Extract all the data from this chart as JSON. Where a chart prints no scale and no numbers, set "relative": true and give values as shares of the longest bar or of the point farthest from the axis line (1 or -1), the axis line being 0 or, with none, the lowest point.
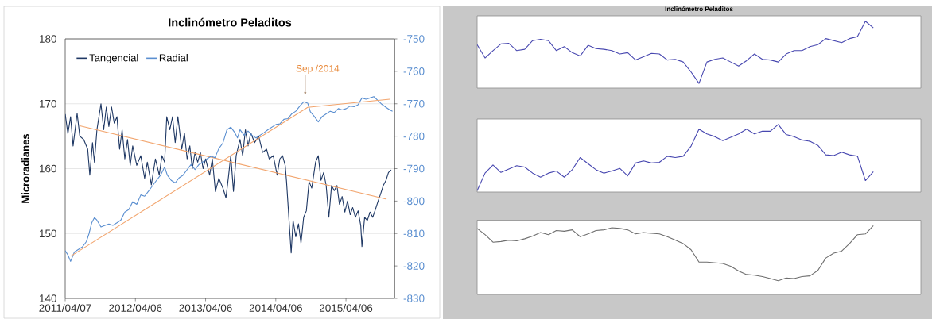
{
  "chart_data": [
    {
      "type": "line",
      "title": "Inclinómetro Peladitos",
      "ylabel": "Microradianes",
      "xlim": [
        "2011-04-07",
        "2015-12-14"
      ],
      "xticks": [
        {
          "value": "2011-04-07",
          "label": "2011/04/07"
        },
        {
          "value": "2012-04-06",
          "label": "2012/04/06"
        },
        {
          "value": "2013-04-06",
          "label": "2013/04/06"
        },
        {
          "value": "2014-04-06",
          "label": "2014/04/06"
        },
        {
          "value": "2015-04-06",
          "label": "2015/04/06"
        }
      ],
      "ylim": [
        140,
        180
      ],
      "yticks": [
        140,
        150,
        160,
        170,
        180
      ],
      "y2lim": [
        -830,
        -750
      ],
      "y2ticks": [
        -830,
        -820,
        -810,
        -800,
        -790,
        -780,
        -770,
        -760,
        -750
      ],
      "grid": "y",
      "legend": "top left",
      "series": [
        {
          "name": "Tangencial",
          "color": "#1f3864",
          "x": [
            "2011-04-07",
            "2011-04-21",
            "2011-05-05",
            "2011-05-18",
            "2011-06-08",
            "2011-06-22",
            "2011-07-12",
            "2011-08-02",
            "2011-08-13",
            "2011-08-27",
            "2011-09-06",
            "2011-09-19",
            "2011-10-10",
            "2011-10-24",
            "2011-11-07",
            "2011-11-20",
            "2011-12-04",
            "2011-12-18",
            "2012-01-01",
            "2012-01-15",
            "2012-01-28",
            "2012-02-11",
            "2012-02-25",
            "2012-03-10",
            "2012-03-23",
            "2012-04-13",
            "2012-05-04",
            "2012-05-24",
            "2012-06-07",
            "2012-06-28",
            "2012-07-19",
            "2012-08-08",
            "2012-08-22",
            "2012-09-05",
            "2012-09-16",
            "2012-10-02",
            "2012-10-16",
            "2012-10-30",
            "2012-11-13",
            "2012-12-03",
            "2012-12-17",
            "2012-12-31",
            "2013-01-14",
            "2013-01-27",
            "2013-02-10",
            "2013-02-24",
            "2013-03-10",
            "2013-03-24",
            "2013-04-06",
            "2013-04-27",
            "2013-05-11",
            "2013-05-27",
            "2013-06-14",
            "2013-07-05",
            "2013-07-21",
            "2013-08-04",
            "2013-08-15",
            "2013-08-29",
            "2013-09-12",
            "2013-10-02",
            "2013-10-16",
            "2013-10-30",
            "2013-11-13",
            "2013-11-27",
            "2013-12-17",
            "2014-01-07",
            "2014-01-28",
            "2014-02-17",
            "2014-03-03",
            "2014-03-24",
            "2014-04-13",
            "2014-04-27",
            "2014-05-11",
            "2014-05-25",
            "2014-06-01",
            "2014-06-14",
            "2014-06-25",
            "2014-07-05",
            "2014-07-19",
            "2014-08-02",
            "2014-08-15",
            "2014-08-29",
            "2014-09-12",
            "2014-09-26",
            "2014-10-10",
            "2014-10-30",
            "2014-11-13",
            "2014-11-27",
            "2014-12-11",
            "2014-12-24",
            "2015-01-07",
            "2015-01-21",
            "2015-02-04",
            "2015-02-18",
            "2015-03-03",
            "2015-03-17",
            "2015-03-31",
            "2015-04-14",
            "2015-04-28",
            "2015-05-11",
            "2015-05-25",
            "2015-06-08",
            "2015-06-22",
            "2015-06-28",
            "2015-07-12",
            "2015-07-26",
            "2015-08-09",
            "2015-08-23",
            "2015-09-06",
            "2015-09-19",
            "2015-10-03",
            "2015-10-17",
            "2015-10-31",
            "2015-11-13",
            "2015-11-27"
          ],
          "values": [
            168.4,
            165.4,
            168,
            163.5,
            168.5,
            165,
            164.5,
            163,
            159,
            164,
            161,
            166,
            170,
            166,
            169.5,
            166.5,
            169.5,
            167,
            168,
            163,
            166,
            161.5,
            164.5,
            160.5,
            163.5,
            160.5,
            162,
            158.5,
            161,
            157.5,
            161.5,
            159,
            162,
            161,
            168,
            166,
            168,
            164,
            168,
            163,
            165.5,
            161.5,
            163.5,
            160,
            162.5,
            161,
            162.5,
            160,
            161.5,
            159,
            161.5,
            156.5,
            158.5,
            157,
            155.5,
            159,
            162,
            156.5,
            162,
            164.5,
            162,
            166,
            163.5,
            165.5,
            164,
            165,
            162.5,
            163,
            161.5,
            162,
            159,
            161.5,
            162,
            160.5,
            158,
            152,
            147,
            152,
            149.5,
            151.5,
            148.5,
            152.5,
            153.5,
            158,
            157,
            161,
            162,
            158.2,
            159.4,
            157.4,
            152.5,
            157.4,
            156.6,
            157.4,
            154.5,
            155.7,
            153.3,
            155,
            152.9,
            154,
            152.5,
            153.5,
            151.2,
            148,
            152.5,
            152,
            153.3,
            152.5,
            153.7,
            154.9,
            156.1,
            157.4,
            158.2,
            159.4,
            159.8
          ]
        },
        {
          "name": "Radial",
          "color": "#5b8fd0",
          "axis": "y2",
          "x": [
            "2011-04-07",
            "2011-04-21",
            "2011-05-05",
            "2011-05-25",
            "2011-06-15",
            "2011-07-06",
            "2011-07-26",
            "2011-08-09",
            "2011-08-23",
            "2011-09-06",
            "2011-09-19",
            "2011-10-10",
            "2011-10-31",
            "2011-11-20",
            "2011-12-11",
            "2012-01-01",
            "2012-01-21",
            "2012-02-11",
            "2012-03-03",
            "2012-03-23",
            "2012-04-13",
            "2012-05-04",
            "2012-05-24",
            "2012-06-14",
            "2012-07-05",
            "2012-07-25",
            "2012-08-15",
            "2012-09-05",
            "2012-09-19",
            "2012-10-09",
            "2012-10-30",
            "2012-11-20",
            "2012-12-10",
            "2012-12-31",
            "2013-01-21",
            "2013-02-10",
            "2013-03-03",
            "2013-03-24",
            "2013-04-13",
            "2013-05-04",
            "2013-05-25",
            "2013-06-14",
            "2013-07-05",
            "2013-07-26",
            "2013-08-15",
            "2013-09-05",
            "2013-09-19",
            "2013-10-02",
            "2013-10-23",
            "2013-11-13",
            "2013-12-03",
            "2013-12-24",
            "2014-01-14",
            "2014-02-04",
            "2014-02-24",
            "2014-03-17",
            "2014-04-07",
            "2014-04-27",
            "2014-05-18",
            "2014-06-08",
            "2014-06-28",
            "2014-07-19",
            "2014-08-09",
            "2014-08-29",
            "2014-09-19",
            "2014-10-03",
            "2014-10-23",
            "2014-11-13",
            "2014-12-04",
            "2014-12-24",
            "2015-01-14",
            "2015-02-04",
            "2015-02-25",
            "2015-03-17",
            "2015-04-07",
            "2015-04-28",
            "2015-05-18",
            "2015-06-08",
            "2015-06-28",
            "2015-07-19",
            "2015-08-09",
            "2015-08-29",
            "2015-09-19",
            "2015-10-10",
            "2015-10-31",
            "2015-11-20",
            "2015-12-04"
          ],
          "values": [
            -815.3,
            -816.6,
            -818.6,
            -815.7,
            -814.9,
            -814.1,
            -812.5,
            -810,
            -806.7,
            -805.1,
            -805.9,
            -808,
            -807.5,
            -807.1,
            -807.5,
            -806.7,
            -805.9,
            -803.4,
            -802.6,
            -800.2,
            -801,
            -798.1,
            -798.5,
            -796.9,
            -795.2,
            -793.6,
            -792,
            -789.5,
            -792,
            -793.6,
            -794.4,
            -792.8,
            -792,
            -790.3,
            -788.7,
            -790.3,
            -788.7,
            -787.9,
            -787,
            -786.2,
            -786.6,
            -783.8,
            -782.1,
            -778,
            -777.2,
            -778.9,
            -780.5,
            -778,
            -779.7,
            -778.4,
            -779.7,
            -780.5,
            -779.7,
            -778.9,
            -778,
            -777.2,
            -776.4,
            -776.2,
            -774.8,
            -774.6,
            -773.1,
            -772.3,
            -770.7,
            -769.4,
            -769.8,
            -772.5,
            -773.9,
            -775.6,
            -773.9,
            -773.1,
            -772.3,
            -772.7,
            -771.5,
            -771.9,
            -771.5,
            -770.7,
            -770.9,
            -770.3,
            -768.2,
            -768.6,
            -768.2,
            -767.8,
            -769,
            -770.2,
            -771.1,
            -771.9,
            -772.3
          ]
        },
        {
          "type": "line",
          "color": "#f2a56e",
          "x": [
            "2011-06-22",
            "2015-11-03"
          ],
          "values": [
            166.6,
            155.3
          ]
        },
        {
          "type": "line",
          "color": "#f2a56e",
          "axis": "y2",
          "x": [
            "2011-05-05",
            "2014-09-19",
            "2015-11-20"
          ],
          "values": [
            -817,
            -771.1,
            -768.6
          ]
        }
      ],
      "annotations": [
        "Sep /2014"
      ]
    },
    {
      "type": "line",
      "title": "Inclinómetro Peladitos",
      "relative": true,
      "categories": [
        null,
        null,
        null,
        null,
        null,
        null,
        null,
        null,
        null,
        null,
        null,
        null,
        null,
        null,
        null,
        null,
        null,
        null,
        null,
        null,
        null,
        null,
        null,
        null,
        null,
        null,
        null,
        null,
        null,
        null,
        null,
        null,
        null,
        null,
        null,
        null,
        null,
        null,
        null,
        null,
        null,
        null,
        null,
        null,
        null,
        null,
        null,
        null,
        null,
        null,
        null,
        null,
        null,
        null,
        null,
        null,
        null
      ],
      "color": "#4848b0",
      "values": [
        0.65,
        0.45,
        0.56,
        0.66,
        0.67,
        0.56,
        0.58,
        0.71,
        0.73,
        0.71,
        0.56,
        0.62,
        0.53,
        0.48,
        0.64,
        0.59,
        0.58,
        0.56,
        0.51,
        0.53,
        0.42,
        0.47,
        0.52,
        0.51,
        0.42,
        0.43,
        0.39,
        0.24,
        0.07,
        0.39,
        0.43,
        0.45,
        0.39,
        0.33,
        0.41,
        0.51,
        0.43,
        0.42,
        0.39,
        0.51,
        0.56,
        0.56,
        0.62,
        0.65,
        0.74,
        0.71,
        0.68,
        0.74,
        0.77,
        1,
        0.9,
        null,
        null,
        null,
        null,
        null,
        null
      ]
    },
    {
      "type": "line",
      "relative": true,
      "categories": [
        null,
        null,
        null,
        null,
        null,
        null,
        null,
        null,
        null,
        null,
        null,
        null,
        null,
        null,
        null,
        null,
        null,
        null,
        null,
        null,
        null,
        null,
        null,
        null,
        null,
        null,
        null,
        null,
        null,
        null,
        null,
        null,
        null,
        null,
        null,
        null,
        null,
        null,
        null,
        null,
        null,
        null,
        null,
        null,
        null,
        null,
        null,
        null,
        null,
        null,
        null,
        null,
        null,
        null,
        null,
        null,
        null
      ],
      "color": "#4848b0",
      "values": [
        0.02,
        0.28,
        0.4,
        0.29,
        0.34,
        0.39,
        0.37,
        0.28,
        0.22,
        0.28,
        0.31,
        0.22,
        0.33,
        0.51,
        0.42,
        0.33,
        0.28,
        0.31,
        0.35,
        0.24,
        0.43,
        0.46,
        0.43,
        0.44,
        0.53,
        0.51,
        0.53,
        0.68,
        0.93,
        0.86,
        0.82,
        0.76,
        0.81,
        0.86,
        0.93,
        0.86,
        0.9,
        0.9,
        1,
        0.85,
        0.82,
        0.77,
        0.75,
        0.69,
        0.55,
        0.54,
        0.59,
        0.55,
        0.53,
        0.17,
        0.3,
        null,
        null,
        null,
        null,
        null,
        null
      ]
    },
    {
      "type": "line",
      "relative": true,
      "categories": [
        null,
        null,
        null,
        null,
        null,
        null,
        null,
        null,
        null,
        null,
        null,
        null,
        null,
        null,
        null,
        null,
        null,
        null,
        null,
        null,
        null,
        null,
        null,
        null,
        null,
        null,
        null,
        null,
        null,
        null,
        null,
        null,
        null,
        null,
        null,
        null,
        null,
        null,
        null,
        null,
        null,
        null,
        null,
        null,
        null,
        null,
        null,
        null,
        null,
        null,
        null,
        null,
        null,
        null,
        null,
        null,
        null
      ],
      "color": "#6e6e6e",
      "values": [
        0.96,
        0.87,
        0.76,
        0.77,
        0.79,
        0.78,
        0.81,
        0.85,
        0.9,
        0.87,
        0.93,
        0.92,
        0.94,
        0.84,
        0.88,
        0.93,
        0.94,
        0.97,
        0.96,
        0.94,
        0.88,
        0.9,
        0.89,
        0.88,
        0.84,
        0.79,
        0.74,
        0.65,
        0.47,
        0.47,
        0.46,
        0.45,
        0.41,
        0.34,
        0.29,
        0.28,
        0.26,
        0.23,
        0.2,
        0.24,
        0.23,
        0.26,
        0.27,
        0.35,
        0.53,
        0.6,
        0.63,
        0.74,
        0.87,
        0.88,
        1,
        null,
        null,
        null,
        null,
        null,
        null
      ]
    }
  ]
}
